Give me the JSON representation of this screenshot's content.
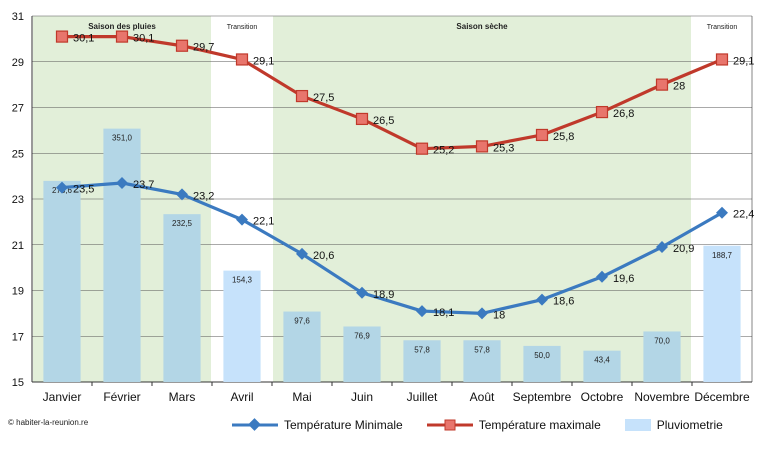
{
  "chart_data": {
    "type": "bar+line",
    "categories": [
      "Janvier",
      "Février",
      "Mars",
      "Avril",
      "Mai",
      "Juin",
      "Juillet",
      "Août",
      "Septembre",
      "Octobre",
      "Novembre",
      "Décembre"
    ],
    "y_axis": {
      "min": 15,
      "max": 31,
      "ticks": [
        15,
        17,
        19,
        21,
        23,
        25,
        27,
        29,
        31
      ]
    },
    "rain_axis_max": 507,
    "bars": {
      "name": "Pluviometrie",
      "values": [
        278.6,
        351.0,
        232.5,
        154.3,
        97.6,
        76.9,
        57.8,
        57.8,
        50.0,
        43.4,
        70.0,
        188.7
      ],
      "labels": [
        "278,6",
        "351,0",
        "232,5",
        "154,3",
        "97,6",
        "76,9",
        "57,8",
        "57,8",
        "50,0",
        "43,4",
        "70,0",
        "188,7"
      ]
    },
    "series": [
      {
        "name": "Température Minimale",
        "values": [
          23.5,
          23.7,
          23.2,
          22.1,
          20.6,
          18.9,
          18.1,
          18,
          18.6,
          19.6,
          20.9,
          22.4
        ],
        "labels": [
          "23,5",
          "23,7",
          "23,2",
          "22,1",
          "20,6",
          "18,9",
          "18,1",
          "18",
          "18,6",
          "19,6",
          "20,9",
          "22,4"
        ]
      },
      {
        "name": "Température maximale",
        "values": [
          30.1,
          30.1,
          29.7,
          29.1,
          27.5,
          26.5,
          25.2,
          25.3,
          25.8,
          26.8,
          28,
          29.1
        ],
        "labels": [
          "30,1",
          "30,1",
          "29,7",
          "29,1",
          "27,5",
          "26,5",
          "25,2",
          "25,3",
          "25,8",
          "26,8",
          "28",
          "29,1"
        ]
      }
    ],
    "seasons": [
      {
        "label": "Saison des pluies",
        "start": 0,
        "end": 2,
        "wet": true
      },
      {
        "label": "Transition",
        "start": 3,
        "end": 3,
        "wet": false
      },
      {
        "label": "Saison sèche",
        "start": 4,
        "end": 10,
        "wet": true
      },
      {
        "label": "Transition",
        "start": 11,
        "end": 11,
        "wet": false
      }
    ],
    "colors": {
      "season_fill": "#e2efd9",
      "bar_wet": "#b3d6e6",
      "bar_dry": "#c6e2fb",
      "min_line": "#3b7ac0",
      "max_line": "#c0392b",
      "max_marker": "#e8756c"
    }
  },
  "legend": {
    "min_label": "Température Minimale",
    "max_label": "Température maximale",
    "rain_label": "Pluviometrie"
  },
  "copyright": "© habiter-la-reunion.re"
}
